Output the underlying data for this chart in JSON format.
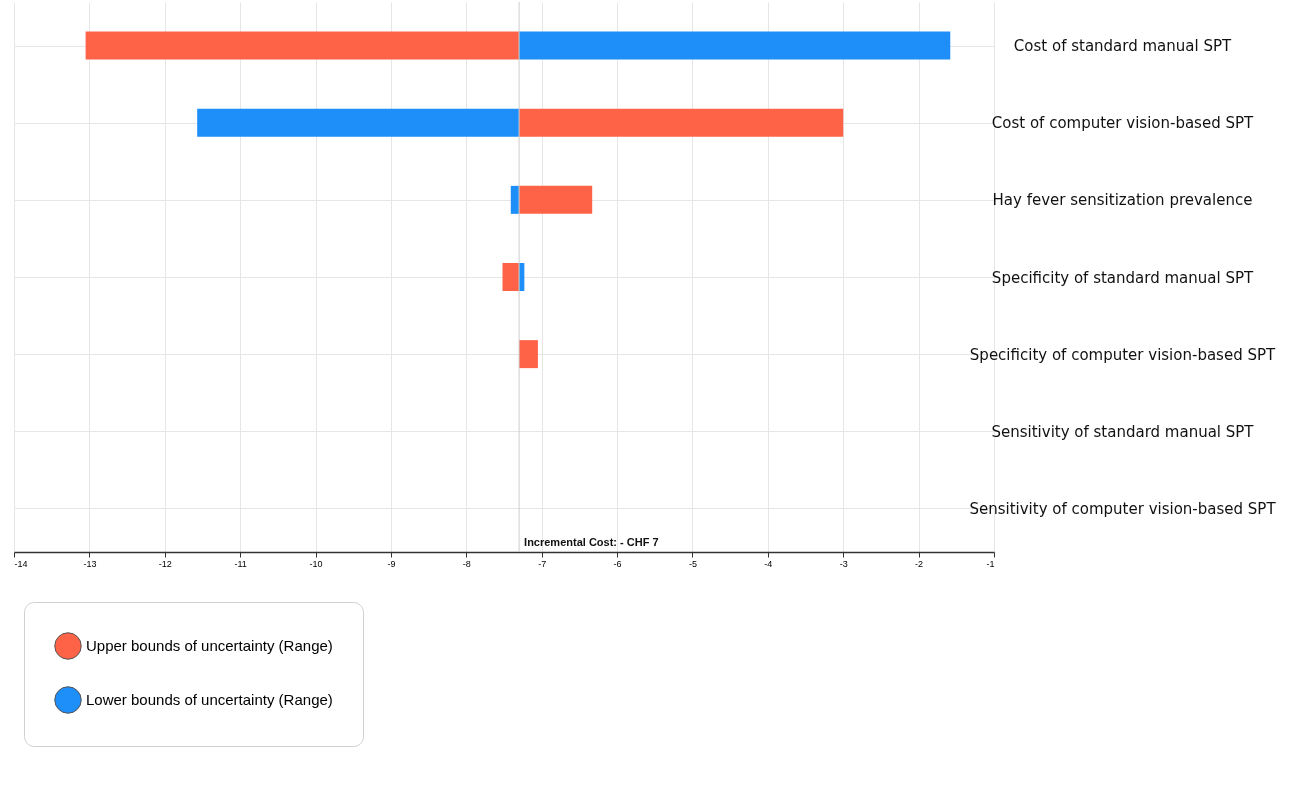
{
  "chart_data": {
    "type": "bar",
    "orientation": "horizontal",
    "categories": [
      "Cost of standard manual SPT",
      "Cost of computer vision-based SPT",
      "Hay fever sensitization prevalence",
      "Specificity of standard manual SPT",
      "Specificity of computer vision-based SPT",
      "Sensitivity of standard manual SPT",
      "Sensitivity of computer vision-based SPT"
    ],
    "series": [
      {
        "name": "Upper bounds of uncertainty (Range)",
        "color": "#fe6347",
        "base": [
          -7.3,
          -7.3,
          -7.3,
          -7.3,
          -7.3,
          null,
          null
        ],
        "values": [
          -5.75,
          4.3,
          0.97,
          -0.22,
          0.25,
          null,
          null
        ]
      },
      {
        "name": "Lower bounds of uncertainty (Range)",
        "color": "#1e8ef9",
        "base": [
          -7.3,
          -7.3,
          -7.3,
          -7.3,
          null,
          null,
          null
        ],
        "values": [
          5.72,
          -4.27,
          -0.11,
          0.07,
          null,
          null,
          null
        ]
      }
    ],
    "xlim": [
      -14,
      -1
    ],
    "xticks": [
      -14,
      -13,
      -12,
      -11,
      -10,
      -9,
      -8,
      -7,
      -6,
      -5,
      -4,
      -3,
      -2,
      -1
    ],
    "ref_lines": [
      {
        "axis": "x",
        "value": -7.3,
        "label": "Incremental Cost: - CHF 7",
        "color": "#cccccc"
      }
    ],
    "grid": true,
    "legend": "bottom left"
  }
}
